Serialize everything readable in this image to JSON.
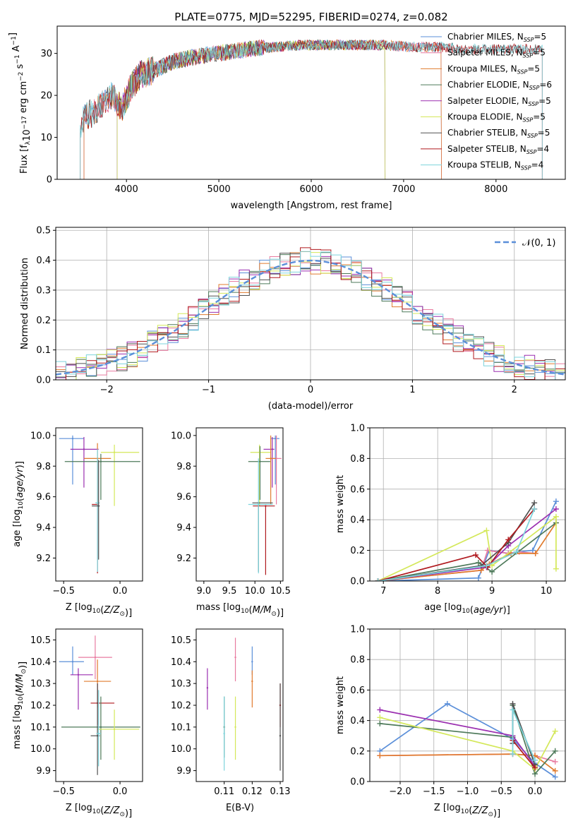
{
  "figure": {
    "title": "PLATE=0775, MJD=52295, FIBERID=0274, z=0.082"
  },
  "colors": {
    "Chabrier MILES": "#5b8fd9",
    "Salpeter MILES": "#e87ba0",
    "Kroupa MILES": "#e07b2e",
    "Chabrier ELODIE": "#4e7a5a",
    "Salpeter ELODIE": "#9b2fb0",
    "Kroupa ELODIE": "#d4e85a",
    "Chabrier STELIB": "#505050",
    "Salpeter STELIB": "#b0191e",
    "Kroupa STELIB": "#7dd4dc"
  },
  "chart_data": [
    {
      "id": "spectrum",
      "type": "line",
      "xlabel": "wavelength [Angstrom, rest frame]",
      "ylabel": "Flux [f_λ10^-17 erg cm^-2 s^-1 A^-1]",
      "xlim": [
        3250,
        8750
      ],
      "ylim": [
        0,
        36.5
      ],
      "xticks": [
        4000,
        5000,
        6000,
        7000,
        8000
      ],
      "yticks": [
        0,
        10,
        20,
        30
      ],
      "legend_position": "top-right",
      "continuum": {
        "x": [
          3500,
          3550,
          3650,
          3750,
          3850,
          3950,
          4050,
          4150,
          4300,
          4500,
          4700,
          5000,
          5300,
          5600,
          5900,
          6200,
          6500,
          6800,
          7100,
          7400,
          7700,
          8000,
          8300,
          8500
        ],
        "y": [
          13,
          15,
          16,
          18,
          20,
          17,
          22,
          25,
          26,
          28,
          29,
          30,
          31,
          31.5,
          32,
          32,
          32,
          32,
          31.5,
          31.5,
          31,
          31,
          31,
          31
        ]
      },
      "series": [
        {
          "name": "Chabrier MILES, N_SSP=5",
          "legend_label": "Chabrier MILES, N",
          "legend_sub": "SSP",
          "legend_val": "=5",
          "xmin": 3540,
          "xmax": 7410
        },
        {
          "name": "Salpeter MILES, N_SSP=5",
          "legend_label": "Salpeter MILES, N",
          "legend_sub": "SSP",
          "legend_val": "=5",
          "xmin": 3540,
          "xmax": 7410
        },
        {
          "name": "Kroupa MILES, N_SSP=5",
          "legend_label": "Kroupa MILES, N",
          "legend_sub": "SSP",
          "legend_val": "=5",
          "xmin": 3540,
          "xmax": 7410
        },
        {
          "name": "Chabrier ELODIE, N_SSP=6",
          "legend_label": "Chabrier ELODIE, N",
          "legend_sub": "SSP",
          "legend_val": "=6",
          "xmin": 3900,
          "xmax": 6800
        },
        {
          "name": "Salpeter ELODIE, N_SSP=5",
          "legend_label": "Salpeter ELODIE, N",
          "legend_sub": "SSP",
          "legend_val": "=5",
          "xmin": 3900,
          "xmax": 6800
        },
        {
          "name": "Kroupa ELODIE, N_SSP=5",
          "legend_label": "Kroupa ELODIE, N",
          "legend_sub": "SSP",
          "legend_val": "=5",
          "xmin": 3900,
          "xmax": 6800
        },
        {
          "name": "Chabrier STELIB, N_SSP=5",
          "legend_label": "Chabrier STELIB, N",
          "legend_sub": "SSP",
          "legend_val": "=5",
          "xmin": 3500,
          "xmax": 8500
        },
        {
          "name": "Salpeter STELIB, N_SSP=4",
          "legend_label": "Salpeter STELIB, N",
          "legend_sub": "SSP",
          "legend_val": "=4",
          "xmin": 3500,
          "xmax": 8500
        },
        {
          "name": "Kroupa STELIB, N_SSP=4",
          "legend_label": "Kroupa STELIB, N",
          "legend_sub": "SSP",
          "legend_val": "=4",
          "xmin": 3500,
          "xmax": 8500
        }
      ]
    },
    {
      "id": "residuals",
      "type": "histogram",
      "xlabel": "(data-model)/error",
      "ylabel": "Normed distribution",
      "xlim": [
        -2.5,
        2.5
      ],
      "ylim": [
        0,
        0.51
      ],
      "xticks": [
        -2,
        -1,
        0,
        1,
        2
      ],
      "yticks": [
        0.0,
        0.1,
        0.2,
        0.3,
        0.4,
        0.5
      ],
      "grid": true,
      "legend_position": "top-right",
      "reference_curve": "N(0,1)",
      "bin_width": 0.1
    },
    {
      "id": "age_vs_Z",
      "type": "scatter",
      "xlabel": "Z [log10(Z/Z_sun)]",
      "ylabel": "age [log10(age/yr)]",
      "xlim": [
        -0.57,
        0.2
      ],
      "ylim": [
        9.05,
        10.05
      ],
      "xticks": [
        -0.5,
        0.0
      ],
      "yticks": [
        9.2,
        9.4,
        9.6,
        9.8,
        10.0
      ],
      "points": [
        {
          "series": "Chabrier MILES",
          "x": -0.42,
          "y": 9.98,
          "xerr": [
            0.12,
            0.1
          ],
          "yerr": [
            0.3,
            0.02
          ]
        },
        {
          "series": "Salpeter ELODIE",
          "x": -0.32,
          "y": 9.91,
          "xerr": [
            0.12,
            0.13
          ],
          "yerr": [
            0.25,
            0.08
          ]
        },
        {
          "series": "Kroupa ELODIE",
          "x": -0.05,
          "y": 9.89,
          "xerr": [
            0.12,
            0.22
          ],
          "yerr": [
            0.35,
            0.05
          ]
        },
        {
          "series": "Kroupa MILES",
          "x": -0.2,
          "y": 9.85,
          "xerr": [
            0.12,
            0.12
          ],
          "yerr": [
            0.29,
            0.1
          ]
        },
        {
          "series": "Chabrier ELODIE",
          "x": -0.17,
          "y": 9.83,
          "xerr": [
            0.32,
            0.35
          ],
          "yerr": [
            0.25,
            0.05
          ]
        },
        {
          "series": "Salpeter STELIB",
          "x": -0.2,
          "y": 9.55,
          "xerr": [
            0.05,
            0.0
          ],
          "yerr": [
            0.45,
            0.3
          ]
        },
        {
          "series": "Kroupa STELIB",
          "x": -0.2,
          "y": 9.56,
          "xerr": [
            0.02,
            0.02
          ],
          "yerr": [
            0.45,
            0.35
          ]
        },
        {
          "series": "Chabrier STELIB",
          "x": -0.19,
          "y": 9.54,
          "xerr": [
            0.06,
            0.01
          ],
          "yerr": [
            0.35,
            0.3
          ]
        }
      ]
    },
    {
      "id": "age_vs_mass",
      "type": "scatter",
      "xlabel": "mass [log10(M/M_sun)]",
      "ylabel": "",
      "xlim": [
        8.85,
        10.55
      ],
      "ylim": [
        9.05,
        10.05
      ],
      "xticks": [
        9.0,
        9.5,
        10.0,
        10.5
      ],
      "yticks": [
        9.2,
        9.4,
        9.6,
        9.8,
        10.0
      ],
      "points": [
        {
          "series": "Chabrier MILES",
          "x": 10.4,
          "y": 9.98,
          "xerr": [
            0.08,
            0.08
          ],
          "yerr": [
            0.3,
            0.02
          ]
        },
        {
          "series": "Salpeter ELODIE",
          "x": 10.34,
          "y": 9.91,
          "xerr": [
            0.17,
            0.04
          ],
          "yerr": [
            0.25,
            0.08
          ]
        },
        {
          "series": "Kroupa ELODIE",
          "x": 10.09,
          "y": 9.89,
          "xerr": [
            0.18,
            0.22
          ],
          "yerr": [
            0.35,
            0.05
          ]
        },
        {
          "series": "Salpeter MILES",
          "x": 10.42,
          "y": 9.85,
          "xerr": [
            0.1,
            0.1
          ],
          "yerr": [
            0.3,
            0.15
          ]
        },
        {
          "series": "Kroupa MILES",
          "x": 10.31,
          "y": 9.85,
          "xerr": [
            0.1,
            0.1
          ],
          "yerr": [
            0.3,
            0.15
          ]
        },
        {
          "series": "Chabrier ELODIE",
          "x": 10.1,
          "y": 9.83,
          "xerr": [
            0.23,
            0.2
          ],
          "yerr": [
            0.25,
            0.1
          ]
        },
        {
          "series": "Salpeter STELIB",
          "x": 10.21,
          "y": 9.54,
          "xerr": [
            0.25,
            0.18
          ],
          "yerr": [
            0.45,
            0.0
          ]
        },
        {
          "series": "Chabrier STELIB",
          "x": 10.07,
          "y": 9.56,
          "xerr": [
            0.12,
            0.28
          ],
          "yerr": [
            0.45,
            0.0
          ]
        },
        {
          "series": "Kroupa STELIB",
          "x": 10.07,
          "y": 9.55,
          "xerr": [
            0.2,
            0.28
          ],
          "yerr": [
            0.45,
            0.3
          ]
        }
      ]
    },
    {
      "id": "weight_vs_age",
      "type": "line",
      "xlabel": "age [log10(age/yr)]",
      "ylabel": "mass weight",
      "xlim": [
        6.75,
        10.35
      ],
      "ylim": [
        0,
        1.0
      ],
      "xticks": [
        7,
        8,
        9,
        10
      ],
      "yticks": [
        0.0,
        0.2,
        0.4,
        0.6,
        0.8,
        1.0
      ],
      "grid": true,
      "series": [
        {
          "name": "Chabrier MILES",
          "x": [
            6.9,
            8.75,
            8.95,
            9.3,
            9.45,
            9.75,
            10.18
          ],
          "y": [
            0.0,
            0.02,
            0.2,
            0.18,
            0.19,
            0.2,
            0.52
          ]
        },
        {
          "name": "Salpeter MILES",
          "x": [
            6.9,
            8.8,
            8.92,
            9.3,
            9.5,
            9.8
          ],
          "y": [
            0.0,
            0.07,
            0.2,
            0.18,
            0.19,
            0.18
          ]
        },
        {
          "name": "Kroupa MILES",
          "x": [
            6.9,
            8.8,
            8.95,
            9.35,
            9.8,
            10.18
          ],
          "y": [
            0.0,
            0.07,
            0.11,
            0.18,
            0.18,
            0.38
          ]
        },
        {
          "name": "Chabrier ELODIE",
          "x": [
            6.9,
            8.75,
            9.0,
            10.18
          ],
          "y": [
            0.0,
            0.12,
            0.06,
            0.38
          ]
        },
        {
          "name": "Salpeter ELODIE",
          "x": [
            6.9,
            8.9,
            9.3,
            10.18
          ],
          "y": [
            0.0,
            0.09,
            0.23,
            0.47
          ]
        },
        {
          "name": "Kroupa ELODIE",
          "x": [
            6.9,
            8.9,
            9.0,
            10.18,
            10.18
          ],
          "y": [
            0.0,
            0.33,
            0.1,
            0.42,
            0.08
          ]
        },
        {
          "name": "Chabrier STELIB",
          "x": [
            6.9,
            8.8,
            9.3,
            9.78
          ],
          "y": [
            0.0,
            0.1,
            0.25,
            0.51
          ]
        },
        {
          "name": "Salpeter STELIB",
          "x": [
            6.9,
            8.7,
            8.92,
            9.3,
            9.78
          ],
          "y": [
            0.0,
            0.17,
            0.09,
            0.27,
            0.47
          ]
        },
        {
          "name": "Kroupa STELIB",
          "x": [
            6.9,
            8.9,
            9.45,
            9.78
          ],
          "y": [
            0.0,
            0.1,
            0.19,
            0.47
          ]
        }
      ]
    },
    {
      "id": "mass_vs_Z",
      "type": "scatter",
      "xlabel": "Z [log10(Z/Z_sun)]",
      "ylabel": "mass [log10(M/M_sun)]",
      "xlim": [
        -0.57,
        0.2
      ],
      "ylim": [
        9.85,
        10.55
      ],
      "xticks": [
        -0.5,
        0.0
      ],
      "yticks": [
        9.9,
        10.0,
        10.1,
        10.2,
        10.3,
        10.4,
        10.5
      ],
      "points": [
        {
          "series": "Salpeter MILES",
          "x": -0.22,
          "y": 10.42,
          "xerr": [
            0.15,
            0.15
          ],
          "yerr": [
            0.1,
            0.1
          ]
        },
        {
          "series": "Chabrier MILES",
          "x": -0.42,
          "y": 10.4,
          "xerr": [
            0.12,
            0.1
          ],
          "yerr": [
            0.06,
            0.07
          ]
        },
        {
          "series": "Salpeter ELODIE",
          "x": -0.37,
          "y": 10.34,
          "xerr": [
            0.07,
            0.13
          ],
          "yerr": [
            0.16,
            0.03
          ]
        },
        {
          "series": "Kroupa MILES",
          "x": -0.2,
          "y": 10.31,
          "xerr": [
            0.12,
            0.12
          ],
          "yerr": [
            0.12,
            0.1
          ]
        },
        {
          "series": "Salpeter STELIB",
          "x": -0.2,
          "y": 10.21,
          "xerr": [
            0.06,
            0.15
          ],
          "yerr": [
            0.1,
            0.09
          ]
        },
        {
          "series": "Chabrier ELODIE",
          "x": -0.17,
          "y": 10.1,
          "xerr": [
            0.35,
            0.35
          ],
          "yerr": [
            0.15,
            0.14
          ]
        },
        {
          "series": "Kroupa ELODIE",
          "x": -0.05,
          "y": 10.09,
          "xerr": [
            0.15,
            0.22
          ],
          "yerr": [
            0.14,
            0.09
          ]
        },
        {
          "series": "Chabrier STELIB",
          "x": -0.2,
          "y": 10.06,
          "xerr": [
            0.06,
            0.02
          ],
          "yerr": [
            0.18,
            0.24
          ]
        },
        {
          "series": "Kroupa STELIB",
          "x": -0.19,
          "y": 10.07,
          "xerr": [
            0.02,
            0.02
          ],
          "yerr": [
            0.15,
            0.2
          ]
        }
      ]
    },
    {
      "id": "mass_vs_EBV",
      "type": "scatter",
      "xlabel": "E(B-V)",
      "ylabel": "",
      "xlim": [
        0.1,
        0.131
      ],
      "ylim": [
        9.85,
        10.55
      ],
      "xticks": [
        0.11,
        0.12,
        0.13
      ],
      "yticks": [
        9.9,
        10.0,
        10.1,
        10.2,
        10.3,
        10.4,
        10.5
      ],
      "points": [
        {
          "series": "Salpeter MILES",
          "x": 0.114,
          "y": 10.42,
          "yerr": [
            0.11,
            0.09
          ]
        },
        {
          "series": "Chabrier MILES",
          "x": 0.12,
          "y": 10.4,
          "yerr": [
            0.06,
            0.07
          ]
        },
        {
          "series": "Salpeter ELODIE",
          "x": 0.104,
          "y": 10.28,
          "yerr": [
            0.1,
            0.09
          ]
        },
        {
          "series": "Kroupa MILES",
          "x": 0.12,
          "y": 10.31,
          "yerr": [
            0.12,
            0.05
          ]
        },
        {
          "series": "Salpeter STELIB",
          "x": 0.13,
          "y": 10.2,
          "yerr": [
            0.1,
            0.1
          ]
        },
        {
          "series": "Chabrier ELODIE",
          "x": 0.11,
          "y": 10.1,
          "yerr": [
            0.14,
            0.14
          ]
        },
        {
          "series": "Kroupa ELODIE",
          "x": 0.114,
          "y": 10.1,
          "yerr": [
            0.15,
            0.14
          ]
        },
        {
          "series": "Chabrier STELIB",
          "x": 0.13,
          "y": 10.06,
          "yerr": [
            0.16,
            0.24
          ]
        },
        {
          "series": "Kroupa STELIB",
          "x": 0.11,
          "y": 10.07,
          "yerr": [
            0.17,
            0.17
          ]
        }
      ]
    },
    {
      "id": "weight_vs_Z",
      "type": "line",
      "xlabel": "Z [log10(Z/Z_sun)]",
      "ylabel": "mass weight",
      "xlim": [
        -2.45,
        0.45
      ],
      "ylim": [
        0,
        1.0
      ],
      "xticks": [
        -2.0,
        -1.5,
        -1.0,
        -0.5,
        0.0
      ],
      "yticks": [
        0.0,
        0.2,
        0.4,
        0.6,
        0.8,
        1.0
      ],
      "grid": true,
      "series": [
        {
          "name": "Chabrier MILES",
          "x": [
            -2.3,
            -1.3,
            -0.33,
            0.0,
            0.3
          ],
          "y": [
            0.2,
            0.51,
            0.28,
            0.12,
            0.03
          ]
        },
        {
          "name": "Salpeter MILES",
          "x": [
            -2.3,
            -0.33,
            0.0,
            0.3
          ],
          "y": [
            0.17,
            0.18,
            0.17,
            0.13
          ]
        },
        {
          "name": "Kroupa MILES",
          "x": [
            -2.3,
            -0.33,
            0.0,
            0.3
          ],
          "y": [
            0.17,
            0.18,
            0.17,
            0.07
          ]
        },
        {
          "name": "Chabrier ELODIE",
          "x": [
            -2.3,
            -0.33,
            -0.33,
            0.0,
            0.3
          ],
          "y": [
            0.38,
            0.29,
            0.5,
            0.05,
            0.2
          ]
        },
        {
          "name": "Salpeter ELODIE",
          "x": [
            -2.3,
            -0.33,
            0.0
          ],
          "y": [
            0.47,
            0.3,
            0.1
          ]
        },
        {
          "name": "Kroupa ELODIE",
          "x": [
            -2.3,
            -0.33,
            0.0,
            0.3
          ],
          "y": [
            0.42,
            0.2,
            0.08,
            0.33
          ]
        },
        {
          "name": "Chabrier STELIB",
          "x": [
            -0.33,
            -0.33,
            0.0
          ],
          "y": [
            0.25,
            0.51,
            0.11
          ]
        },
        {
          "name": "Salpeter STELIB",
          "x": [
            -0.33,
            0.0
          ],
          "y": [
            0.27,
            0.09
          ]
        },
        {
          "name": "Kroupa STELIB",
          "x": [
            -0.33,
            -0.33,
            0.0
          ],
          "y": [
            0.18,
            0.47,
            0.14
          ]
        }
      ]
    }
  ]
}
